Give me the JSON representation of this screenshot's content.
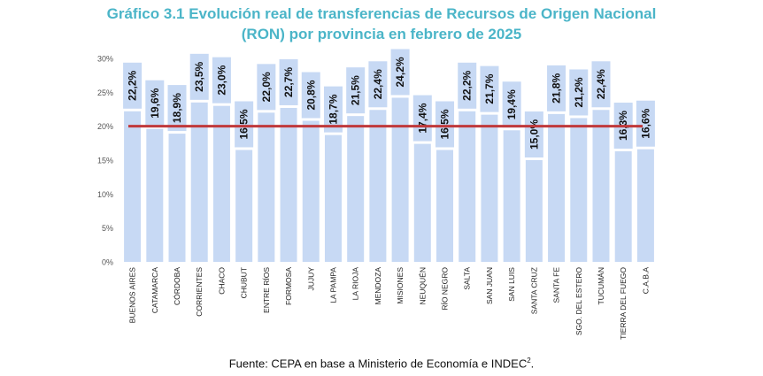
{
  "chart_data": {
    "type": "bar",
    "title_line1": "Gráfico 3.1 Evolución real de transferencias de Recursos de Origen Nacional",
    "title_line2": "(RON) por provincia en febrero de 2025",
    "categories": [
      "BUENOS AIRES",
      "CATAMARCA",
      "CÓRDOBA",
      "CORRIENTES",
      "CHACO",
      "CHUBUT",
      "ENTRE RÍOS",
      "FORMOSA",
      "JUJUY",
      "LA PAMPA",
      "LA RIOJA",
      "MENDOZA",
      "MISIONES",
      "NEUQUÉN",
      "RÍO NEGRO",
      "SALTA",
      "SAN JUAN",
      "SAN LUIS",
      "SANTA CRUZ",
      "SANTA FE",
      "SGO. DEL ESTERO",
      "TUCUMÁN",
      "TIERRA DEL FUEGO",
      "C.A.B.A"
    ],
    "values": [
      22.2,
      19.6,
      18.9,
      23.5,
      23.0,
      16.5,
      22.0,
      22.7,
      20.8,
      18.7,
      21.5,
      22.4,
      24.2,
      17.4,
      16.5,
      22.2,
      21.7,
      19.4,
      15.0,
      21.8,
      21.2,
      22.4,
      16.3,
      16.6
    ],
    "data_labels": [
      "22,2%",
      "19,6%",
      "18,9%",
      "23,5%",
      "23,0%",
      "16,5%",
      "22,0%",
      "22,7%",
      "20,8%",
      "18,7%",
      "21,5%",
      "22,4%",
      "24,2%",
      "17,4%",
      "16,5%",
      "22,2%",
      "21,7%",
      "19,4%",
      "15,0%",
      "21,8%",
      "21,2%",
      "22,4%",
      "16,3%",
      "16,6%"
    ],
    "reference_line": 20,
    "ylim": [
      0,
      30
    ],
    "yticks": [
      0,
      5,
      10,
      15,
      20,
      25,
      30
    ],
    "ytick_labels": [
      "0%",
      "5%",
      "10%",
      "15%",
      "20%",
      "25%",
      "30%"
    ],
    "grid": false,
    "colors": {
      "bar": "#c7d9f4",
      "label_box": "#c7d9f4",
      "reference_line": "#c0393b",
      "title": "#4bb5c8",
      "axis_text": "#555555"
    }
  },
  "footer": {
    "source_text": "Fuente: CEPA en base a Ministerio de Economía e INDEC",
    "source_sup": "2",
    "source_end": "."
  }
}
